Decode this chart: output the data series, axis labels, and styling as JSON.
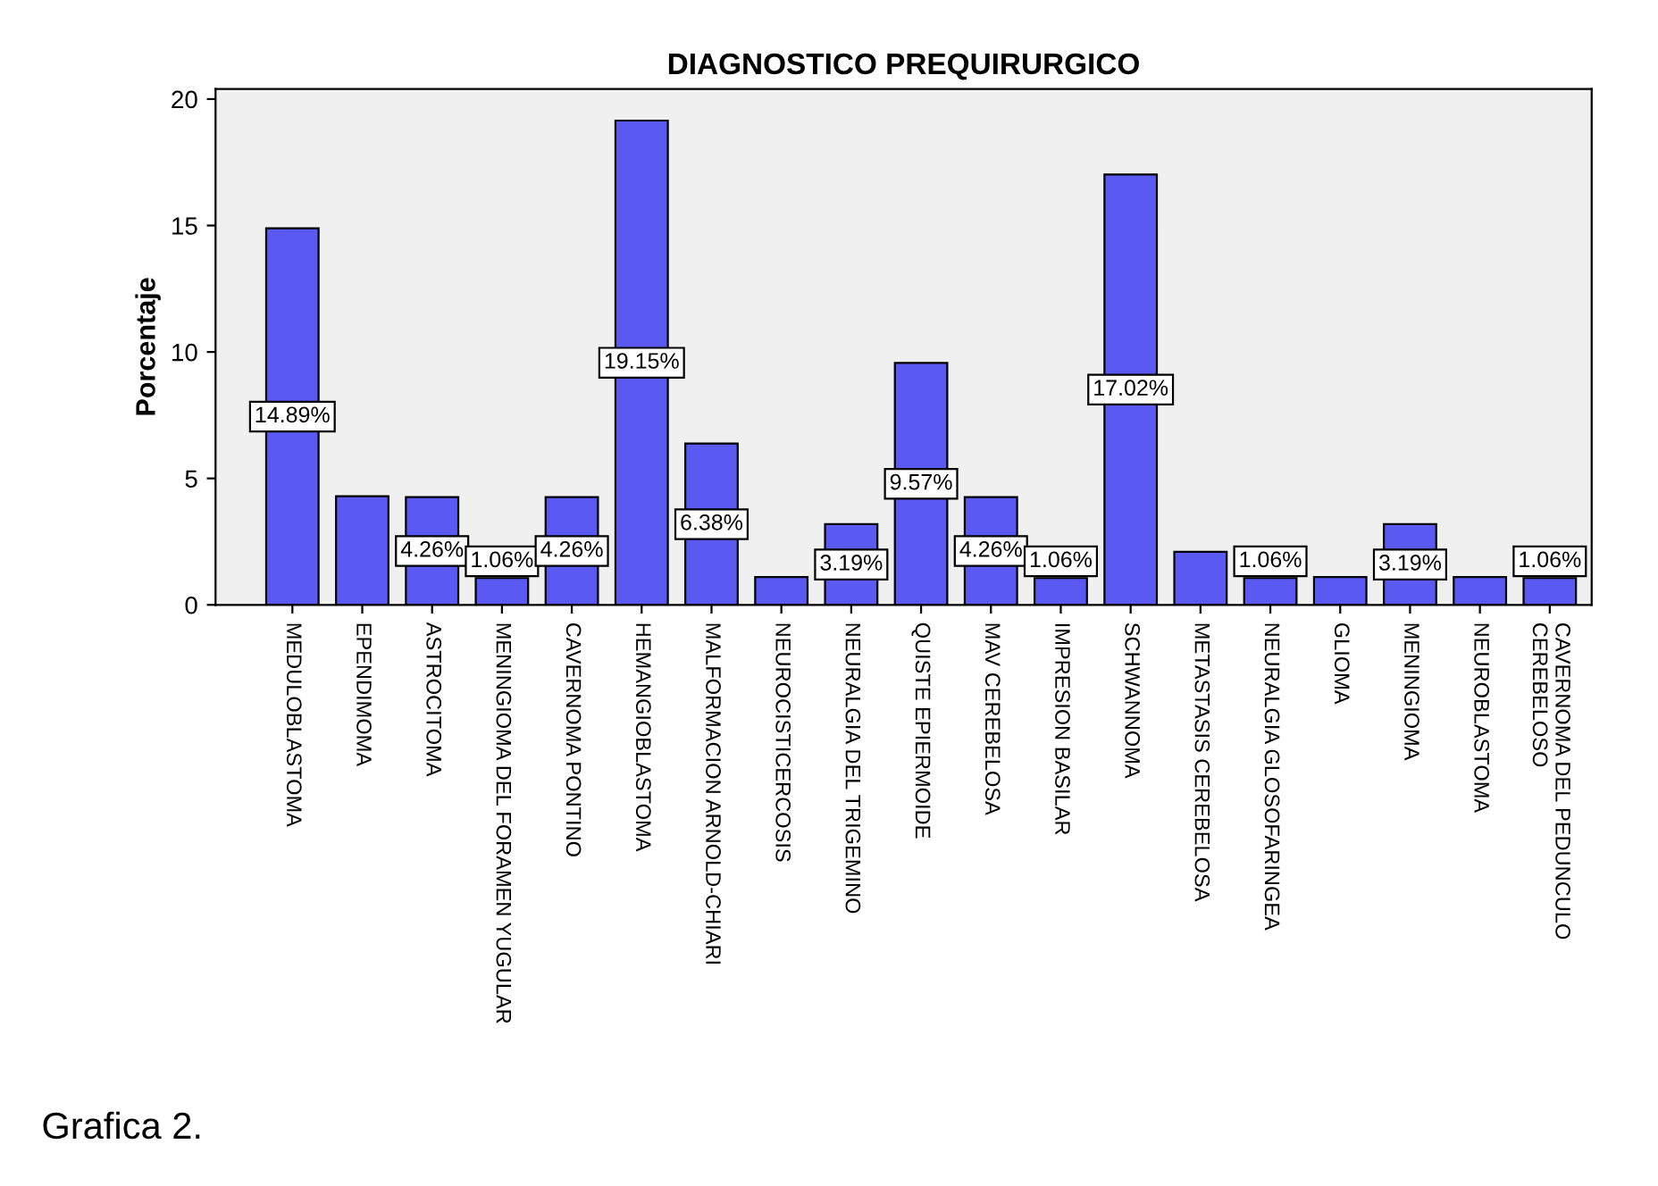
{
  "chart_data": {
    "type": "bar",
    "title": "DIAGNOSTICO PREQUIRURGICO",
    "ylabel": "Porcentaje",
    "categories": [
      "MEDULOBLASTOMA",
      "EPENDIMOMA",
      "ASTROCITOMA",
      "MENINGIOMA DEL FORAMEN YUGULAR",
      "CAVERNOMA PONTINO",
      "HEMANGIOBLASTOMA",
      "MALFORMACION ARNOLD-CHIARI",
      "NEUROCISTICERCOSIS",
      "NEURALGIA DEL TRIGEMINO",
      "QUISTE EPIERMOIDE",
      "MAV CEREBELOSA",
      "IMPRESION BASILAR",
      "SCHWANNOMA",
      "METASTASIS CEREBELOSA",
      "NEURALGIA GLOSOFARINGEA",
      "GLIOMA",
      "MENINGIOMA",
      "NEUROBLASTOMA",
      "CAVERNOMA DEL PEDUNCULO\nCEREBELOSO"
    ],
    "values": [
      14.89,
      4.3,
      4.26,
      1.06,
      4.26,
      19.15,
      6.38,
      1.1,
      3.19,
      9.57,
      4.26,
      1.06,
      17.02,
      2.1,
      1.06,
      1.1,
      3.19,
      1.1,
      1.06
    ],
    "value_labels": [
      "14.89%",
      null,
      "4.26%",
      "1.06%",
      "4.26%",
      "19.15%",
      "6.38%",
      null,
      "3.19%",
      "9.57%",
      "4.26%",
      "1.06%",
      "17.02%",
      null,
      "1.06%",
      null,
      "3.19%",
      null,
      "1.06%"
    ],
    "color": "#5a5af2",
    "ylim": [
      0,
      20.4
    ],
    "yticks": [
      0,
      5,
      10,
      15,
      20
    ],
    "grid": false,
    "annotations": [
      "Grafica 2."
    ]
  }
}
